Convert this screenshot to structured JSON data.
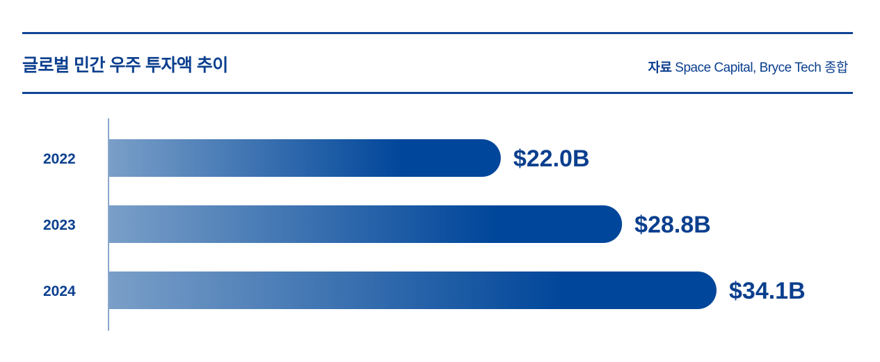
{
  "header": {
    "title": "글로벌 민간 우주 투자액 추이",
    "source_label": "자료",
    "source_text": "Space Capital, Bryce Tech 종합"
  },
  "colors": {
    "accent": "#00469a",
    "bar_start": "#7a9fc8",
    "bar_end": "#00469a",
    "axis": "#8aa6cc"
  },
  "chart_data": {
    "type": "bar",
    "orientation": "horizontal",
    "categories": [
      "2022",
      "2023",
      "2024"
    ],
    "values": [
      22.0,
      28.8,
      34.1
    ],
    "data_labels": [
      "$22.0B",
      "$28.8B",
      "$34.1B"
    ],
    "title": "글로벌 민간 우주 투자액 추이",
    "xlabel": "",
    "ylabel": "",
    "grid": false
  }
}
